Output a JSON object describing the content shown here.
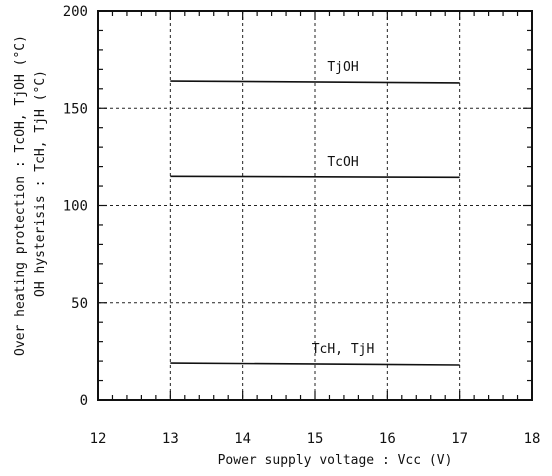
{
  "chart_data": {
    "type": "line",
    "xlabel": "Power supply voltage : Vcc (V)",
    "ylabel_lines": [
      "Over heating protection : TcOH, TjOH (°C)",
      "OH hysterisis : TcH, TjH (°C)"
    ],
    "xlim": [
      12,
      18
    ],
    "ylim": [
      0,
      200
    ],
    "xticks": [
      12,
      13,
      14,
      15,
      16,
      17,
      18
    ],
    "yticks": [
      0,
      50,
      100,
      150,
      200
    ],
    "grid": true,
    "series": [
      {
        "name": "TjOH",
        "x": [
          13,
          17
        ],
        "y": [
          164,
          163
        ]
      },
      {
        "name": "TcOH",
        "x": [
          13,
          17
        ],
        "y": [
          115,
          114.5
        ]
      },
      {
        "name": "TcH, TjH",
        "x": [
          13,
          17
        ],
        "y": [
          19,
          18
        ]
      }
    ]
  }
}
